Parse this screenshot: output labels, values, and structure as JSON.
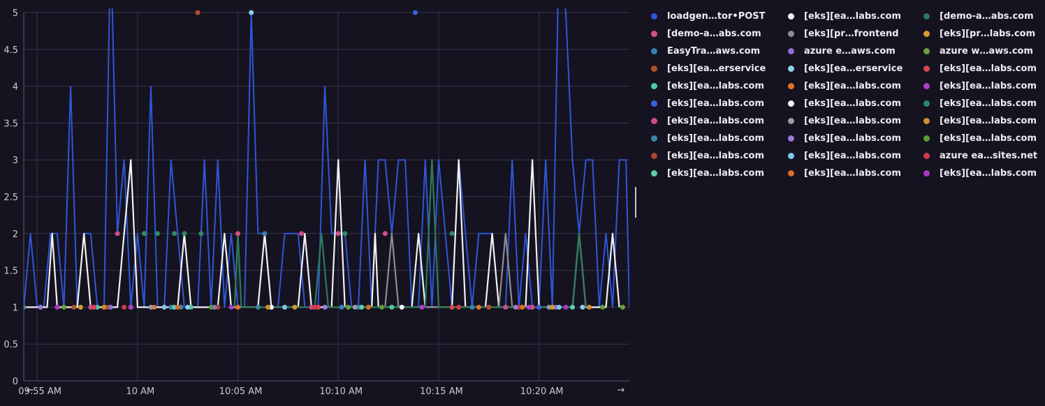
{
  "colors": {
    "background": "#14131f",
    "grid": "#34344a",
    "axis": "#5a5a70",
    "main_series": "#2f56d8"
  },
  "chart_data": {
    "type": "line",
    "title": "",
    "xlabel": "",
    "ylabel": "",
    "ylim": [
      0,
      5
    ],
    "y_ticks": [
      "0",
      "0.5",
      "1",
      "1.5",
      "2",
      "2.5",
      "3",
      "3.5",
      "4",
      "4.5",
      "5"
    ],
    "x_ticks": [
      "09:55 AM",
      "10 AM",
      "10:05 AM",
      "10:10 AM",
      "10:15 AM",
      "10:20 AM"
    ],
    "x_range": [
      "09:54:20",
      "10:24:30"
    ],
    "grid": true,
    "legend_position": "right",
    "nav": {
      "prev_icon": "arrow-left-icon",
      "next_icon": "arrow-right-icon"
    },
    "series": [
      {
        "name": "loadgen…tor•POST",
        "color": "#2f56d8",
        "style": "line",
        "x": [
          "09:54:20",
          "09:54:40",
          "09:55:00",
          "09:55:20",
          "09:55:40",
          "09:56:00",
          "09:56:20",
          "09:56:40",
          "09:57:00",
          "09:57:20",
          "09:57:40",
          "09:58:00",
          "09:58:20",
          "09:58:40",
          "09:59:00",
          "09:59:20",
          "09:59:40",
          "10:00:00",
          "10:00:20",
          "10:00:40",
          "10:01:00",
          "10:01:20",
          "10:01:40",
          "10:02:00",
          "10:02:20",
          "10:02:40",
          "10:03:00",
          "10:03:20",
          "10:03:40",
          "10:04:00",
          "10:04:20",
          "10:04:40",
          "10:05:00",
          "10:05:20",
          "10:05:40",
          "10:06:00",
          "10:06:20",
          "10:06:40",
          "10:07:00",
          "10:07:20",
          "10:07:40",
          "10:08:00",
          "10:08:20",
          "10:08:40",
          "10:09:00",
          "10:09:20",
          "10:09:40",
          "10:10:00",
          "10:10:20",
          "10:10:40",
          "10:11:00",
          "10:11:20",
          "10:11:40",
          "10:12:00",
          "10:12:20",
          "10:12:40",
          "10:13:00",
          "10:13:20",
          "10:13:40",
          "10:14:00",
          "10:14:20",
          "10:14:40",
          "10:15:00",
          "10:15:20",
          "10:15:40",
          "10:16:00",
          "10:16:20",
          "10:16:40",
          "10:17:00",
          "10:17:20",
          "10:17:40",
          "10:18:00",
          "10:18:20",
          "10:18:40",
          "10:19:00",
          "10:19:20",
          "10:19:40",
          "10:20:00",
          "10:20:20",
          "10:20:40",
          "10:21:00",
          "10:21:20",
          "10:21:40",
          "10:22:00",
          "10:22:20",
          "10:22:40",
          "10:23:00",
          "10:23:20",
          "10:23:40",
          "10:24:00",
          "10:24:20",
          "10:24:30"
        ],
        "y": [
          1,
          2,
          1,
          1,
          2,
          2,
          1,
          4,
          1,
          2,
          2,
          1,
          1,
          6,
          2,
          3,
          1,
          2,
          1,
          4,
          1,
          1,
          3,
          2,
          1,
          1,
          1,
          3,
          1,
          3,
          1,
          2,
          1,
          1,
          5,
          2,
          2,
          1,
          1,
          2,
          2,
          2,
          1,
          1,
          1,
          4,
          2,
          2,
          2,
          1,
          1,
          3,
          1,
          3,
          3,
          2,
          3,
          3,
          1,
          1,
          3,
          1,
          3,
          2,
          1,
          3,
          2,
          1,
          2,
          2,
          2,
          1,
          1,
          3,
          1,
          2,
          1,
          1,
          3,
          1,
          6,
          5,
          3,
          2,
          3,
          3,
          1,
          2,
          1,
          3,
          3,
          1
        ]
      },
      {
        "name": "[demo-a…abs.com",
        "color": "#d24f8a",
        "style": "markers",
        "x": [
          "09:59:00",
          "10:05:00",
          "10:08:10",
          "10:10:00",
          "10:12:20",
          "10:19:40"
        ],
        "y": [
          2,
          2,
          2,
          2,
          2,
          1
        ]
      },
      {
        "name": "EasyTra…aws.com",
        "color": "#3d7fb0",
        "style": "markers",
        "x": [
          "09:54:20",
          "10:01:40",
          "10:06:20",
          "10:10:10",
          "10:11:00",
          "10:15:40"
        ],
        "y": [
          1,
          1,
          2,
          1,
          1,
          1
        ]
      },
      {
        "name": "[eks][ea…erservice",
        "color": "#b0512c",
        "style": "markers",
        "x": [
          "10:03:00",
          "09:56:50",
          "10:17:30"
        ],
        "y": [
          5,
          1,
          1
        ]
      },
      {
        "name": "[eks][ea…labs.com",
        "color": "#4fc8a0",
        "style": "markers",
        "x": [
          "09:58:00",
          "10:02:40",
          "10:12:40"
        ],
        "y": [
          1,
          1,
          1
        ]
      },
      {
        "name": "[eks][ea…labs.com",
        "color": "#3a62e0",
        "style": "markers",
        "x": [
          "10:06:40",
          "10:13:50",
          "10:20:00"
        ],
        "y": [
          1,
          5,
          1
        ]
      },
      {
        "name": "[eks][ea…labs.com",
        "color": "#cf4c8e",
        "style": "markers",
        "x": [
          "09:57:40",
          "10:08:40",
          "10:18:20"
        ],
        "y": [
          1,
          1,
          1
        ]
      },
      {
        "name": "[eks][ea…labs.com",
        "color": "#3f84a6",
        "style": "markers",
        "x": [
          "10:02:10",
          "10:06:00",
          "10:16:40"
        ],
        "y": [
          1,
          1,
          1
        ]
      },
      {
        "name": "[eks][ea…labs.com",
        "color": "#a8492e",
        "style": "markers",
        "x": [
          "09:58:30",
          "10:04:00",
          "10:19:00"
        ],
        "y": [
          1,
          1,
          1
        ]
      },
      {
        "name": "[eks][ea…labs.com",
        "color": "#5ccfa8",
        "style": "markers",
        "x": [
          "10:01:50",
          "10:11:10",
          "10:21:40"
        ],
        "y": [
          1,
          1,
          1
        ]
      },
      {
        "name": "[eks][ea…labs.com",
        "color": "#f2f2f4",
        "style": "line",
        "x": [
          "09:54:20",
          "09:55:00",
          "09:55:30",
          "09:55:45",
          "09:56:00",
          "09:57:00",
          "09:57:20",
          "09:57:40",
          "09:59:00",
          "09:59:40",
          "10:00:00",
          "10:00:20",
          "10:02:00",
          "10:02:20",
          "10:02:40",
          "10:04:00",
          "10:04:20",
          "10:04:40",
          "10:06:00",
          "10:06:20",
          "10:06:40",
          "10:08:00",
          "10:08:20",
          "10:08:40",
          "10:09:40",
          "10:10:00",
          "10:10:20",
          "10:11:40",
          "10:11:50",
          "10:12:00",
          "10:13:40",
          "10:14:00",
          "10:14:20",
          "10:15:40",
          "10:16:00",
          "10:16:20",
          "10:17:20",
          "10:17:40",
          "10:18:00",
          "10:19:20",
          "10:19:40",
          "10:20:00",
          "10:21:40",
          "10:22:00",
          "10:22:20",
          "10:23:20",
          "10:23:40",
          "10:24:00"
        ],
        "y": [
          1,
          1,
          1,
          2,
          1,
          1,
          2,
          1,
          1,
          3,
          1,
          1,
          1,
          2,
          1,
          1,
          2,
          1,
          1,
          2,
          1,
          1,
          2,
          1,
          1,
          3,
          1,
          1,
          2,
          1,
          1,
          2,
          1,
          1,
          3,
          1,
          1,
          2,
          1,
          1,
          3,
          1,
          1,
          2,
          1,
          1,
          2,
          1
        ]
      },
      {
        "name": "[eks][pr…frontend",
        "color": "#8c8c96",
        "style": "line",
        "x": [
          "10:12:20",
          "10:12:40",
          "10:13:00",
          "10:18:00",
          "10:18:20",
          "10:18:40"
        ],
        "y": [
          1,
          2,
          1,
          1,
          2,
          1
        ]
      },
      {
        "name": "azure e…aws.com",
        "color": "#8e6fd0",
        "style": "markers",
        "x": [
          "09:58:40",
          "10:03:50",
          "10:20:50"
        ],
        "y": [
          1,
          1,
          1
        ]
      },
      {
        "name": "[eks][ea…erservice",
        "color": "#8fd0ee",
        "style": "markers",
        "x": [
          "10:05:40",
          "10:02:30",
          "10:22:10"
        ],
        "y": [
          5,
          1,
          1
        ]
      },
      {
        "name": "[eks][ea…labs.com",
        "color": "#e0742c",
        "style": "markers",
        "x": [
          "10:00:50",
          "10:05:00",
          "10:17:00"
        ],
        "y": [
          1,
          1,
          1
        ]
      },
      {
        "name": "[eks][ea…labs.com",
        "color": "#f5f5f7",
        "style": "markers",
        "x": [
          "09:59:40",
          "10:06:40",
          "10:13:10"
        ],
        "y": [
          1,
          1,
          1
        ]
      },
      {
        "name": "[eks][ea…labs.com",
        "color": "#9a9aa4",
        "style": "markers",
        "x": [
          "10:00:40",
          "10:10:50",
          "10:20:30"
        ],
        "y": [
          1,
          1,
          1
        ]
      },
      {
        "name": "[eks][ea…labs.com",
        "color": "#9b7ad8",
        "style": "markers",
        "x": [
          "09:55:10",
          "10:09:20",
          "10:18:50"
        ],
        "y": [
          1,
          1,
          1
        ]
      },
      {
        "name": "[eks][ea…labs.com",
        "color": "#82c6e8",
        "style": "markers",
        "x": [
          "10:01:20",
          "10:07:20",
          "10:21:00"
        ],
        "y": [
          1,
          1,
          1
        ]
      },
      {
        "name": "[eks][ea…labs.com",
        "color": "#e06c28",
        "style": "markers",
        "x": [
          "10:02:00",
          "10:11:30",
          "10:19:10"
        ],
        "y": [
          1,
          1,
          1
        ]
      },
      {
        "name": "[demo-a…abs.com",
        "color": "#2e7a5a",
        "style": "line",
        "x": [
          "10:04:50",
          "10:05:00",
          "10:05:10",
          "10:08:50",
          "10:09:10",
          "10:09:30",
          "10:14:20",
          "10:14:40",
          "10:15:00",
          "10:21:40",
          "10:22:00",
          "10:22:20"
        ],
        "y": [
          1,
          2,
          1,
          1,
          2,
          1,
          1,
          3,
          1,
          1,
          2,
          1
        ]
      },
      {
        "name": "[eks][pr…labs.com",
        "color": "#d49a2e",
        "style": "markers",
        "x": [
          "09:57:10",
          "10:07:50",
          "10:20:40"
        ],
        "y": [
          1,
          1,
          1
        ]
      },
      {
        "name": "azure w…aws.com",
        "color": "#6aa040",
        "style": "markers",
        "x": [
          "09:56:20",
          "10:10:30",
          "10:24:10"
        ],
        "y": [
          1,
          1,
          1
        ]
      },
      {
        "name": "[eks][ea…labs.com",
        "color": "#d84550",
        "style": "markers",
        "x": [
          "09:57:50",
          "10:09:00",
          "10:15:40"
        ],
        "y": [
          1,
          1,
          1
        ]
      },
      {
        "name": "[eks][ea…labs.com",
        "color": "#b03ec8",
        "style": "markers",
        "x": [
          "09:59:40",
          "10:14:10",
          "10:19:30"
        ],
        "y": [
          1,
          1,
          1
        ]
      },
      {
        "name": "[eks][ea…labs.com",
        "color": "#2f8a66",
        "style": "markers",
        "x": [
          "10:00:20",
          "10:01:00",
          "10:01:50",
          "10:02:20",
          "10:03:10",
          "10:10:20",
          "10:15:40"
        ],
        "y": [
          2,
          2,
          2,
          2,
          2,
          2,
          2
        ]
      },
      {
        "name": "[eks][ea…labs.com",
        "color": "#d08e2c",
        "style": "markers",
        "x": [
          "09:58:20",
          "10:06:30",
          "10:22:30"
        ],
        "y": [
          1,
          1,
          1
        ]
      },
      {
        "name": "[eks][ea…labs.com",
        "color": "#5e9a3a",
        "style": "markers",
        "x": [
          "10:03:40",
          "10:12:10",
          "10:23:10"
        ],
        "y": [
          1,
          1,
          1
        ]
      },
      {
        "name": "azure ea…sites.net",
        "color": "#d23a4a",
        "style": "markers",
        "x": [
          "09:59:20",
          "10:08:50",
          "10:16:00"
        ],
        "y": [
          1,
          1,
          1
        ]
      },
      {
        "name": "[eks][ea…labs.com",
        "color": "#a93ac2",
        "style": "markers",
        "x": [
          "09:56:00",
          "10:04:40",
          "10:21:20"
        ],
        "y": [
          1,
          1,
          1
        ]
      }
    ]
  }
}
